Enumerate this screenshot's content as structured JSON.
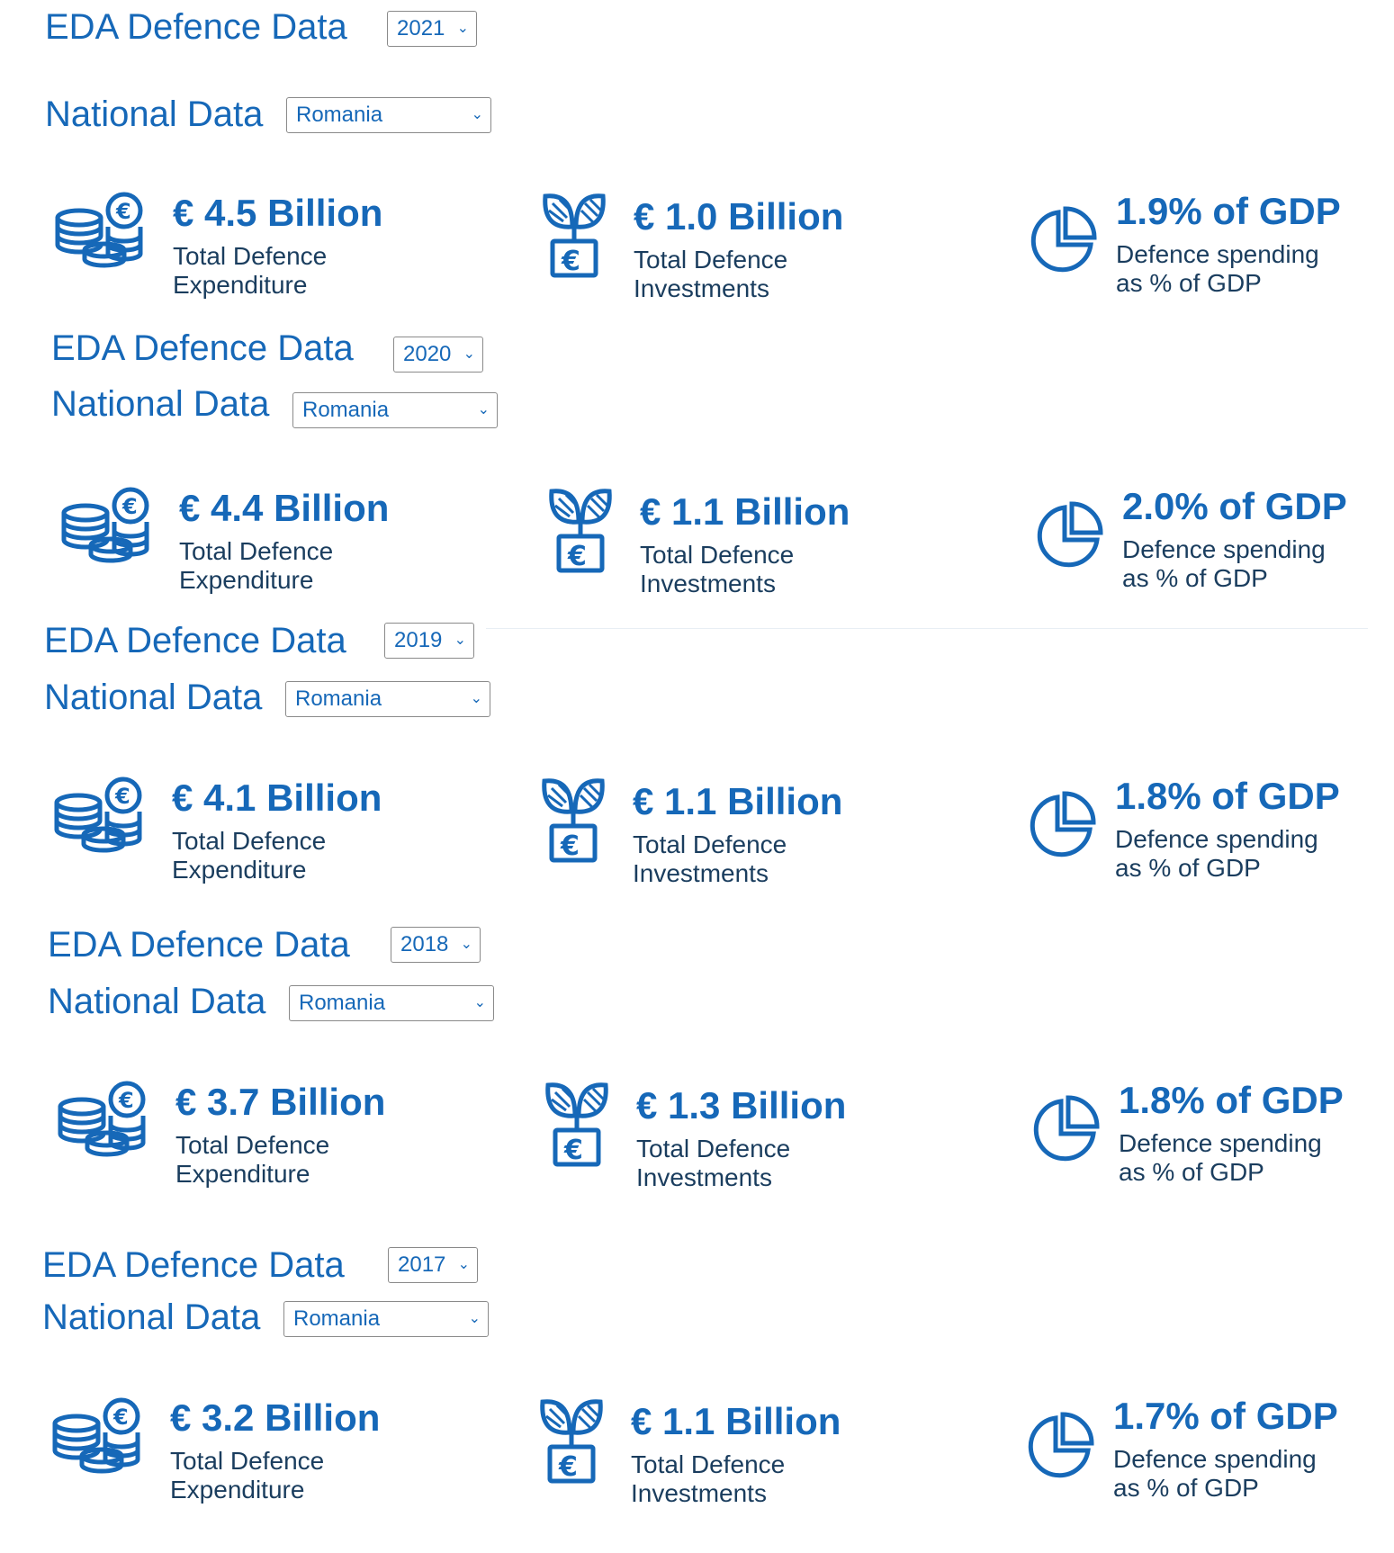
{
  "common": {
    "section_title": "EDA Defence Data",
    "national_label": "National Data",
    "country": "Romania",
    "exp_label": "Total Defence Expenditure",
    "inv_label": "Total Defence Investments",
    "gdp_label": "Defence spending as % of GDP"
  },
  "sections": [
    {
      "year": "2021",
      "expenditure": "€ 4.5 Billion",
      "investments": "€ 1.0 Billion",
      "gdp": "1.9% of GDP"
    },
    {
      "year": "2020",
      "expenditure": "€ 4.4 Billion",
      "investments": "€ 1.1 Billion",
      "gdp": "2.0% of GDP"
    },
    {
      "year": "2019",
      "expenditure": "€ 4.1 Billion",
      "investments": "€ 1.1 Billion",
      "gdp": "1.8% of GDP"
    },
    {
      "year": "2018",
      "expenditure": "€ 3.7 Billion",
      "investments": "€ 1.3 Billion",
      "gdp": "1.8% of GDP"
    },
    {
      "year": "2017",
      "expenditure": "€ 3.2 Billion",
      "investments": "€ 1.1 Billion",
      "gdp": "1.7% of GDP"
    }
  ],
  "icons": [
    "coins-euro-icon",
    "plant-euro-icon",
    "pie-chart-icon",
    "chevron-down-icon"
  ],
  "colors": {
    "accent": "#1668b8",
    "text_dark": "#1a3d5e",
    "border": "#8a8a8a"
  }
}
